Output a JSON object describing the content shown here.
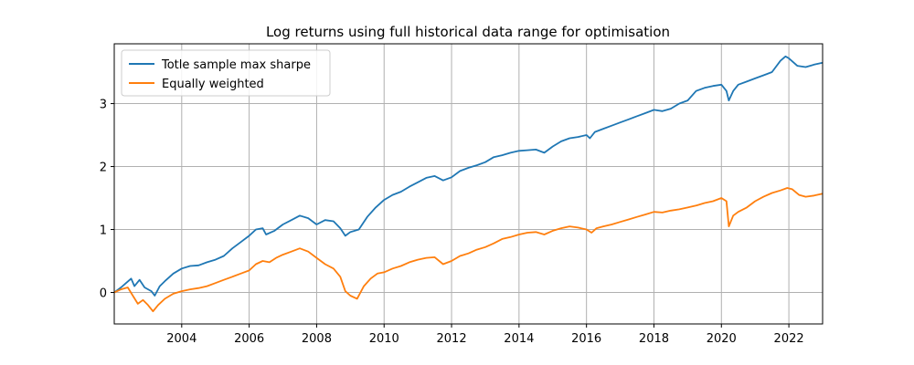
{
  "chart_data": {
    "type": "line",
    "title": "Log returns using full historical data range for optimisation",
    "xlabel": "",
    "ylabel": "",
    "xlim": [
      2002.0,
      2023.0
    ],
    "ylim": [
      -0.5,
      3.95
    ],
    "x_ticks": [
      2004,
      2006,
      2008,
      2010,
      2012,
      2014,
      2016,
      2018,
      2020,
      2022
    ],
    "y_ticks": [
      0,
      1,
      2,
      3
    ],
    "grid": true,
    "legend_position": "top-left",
    "series": [
      {
        "name": "Totle sample max sharpe",
        "color": "#1f77b4",
        "points": [
          [
            2002.0,
            0.0
          ],
          [
            2002.2,
            0.08
          ],
          [
            2002.35,
            0.15
          ],
          [
            2002.5,
            0.22
          ],
          [
            2002.6,
            0.1
          ],
          [
            2002.75,
            0.2
          ],
          [
            2002.9,
            0.08
          ],
          [
            2003.1,
            0.02
          ],
          [
            2003.2,
            -0.05
          ],
          [
            2003.35,
            0.1
          ],
          [
            2003.5,
            0.18
          ],
          [
            2003.75,
            0.3
          ],
          [
            2004.0,
            0.38
          ],
          [
            2004.25,
            0.42
          ],
          [
            2004.5,
            0.43
          ],
          [
            2004.75,
            0.48
          ],
          [
            2005.0,
            0.52
          ],
          [
            2005.25,
            0.58
          ],
          [
            2005.5,
            0.7
          ],
          [
            2005.75,
            0.8
          ],
          [
            2006.0,
            0.9
          ],
          [
            2006.2,
            1.0
          ],
          [
            2006.4,
            1.02
          ],
          [
            2006.5,
            0.92
          ],
          [
            2006.75,
            0.98
          ],
          [
            2007.0,
            1.08
          ],
          [
            2007.25,
            1.15
          ],
          [
            2007.5,
            1.22
          ],
          [
            2007.75,
            1.18
          ],
          [
            2008.0,
            1.08
          ],
          [
            2008.25,
            1.15
          ],
          [
            2008.5,
            1.13
          ],
          [
            2008.7,
            1.02
          ],
          [
            2008.85,
            0.9
          ],
          [
            2009.0,
            0.96
          ],
          [
            2009.25,
            1.0
          ],
          [
            2009.5,
            1.2
          ],
          [
            2009.75,
            1.35
          ],
          [
            2010.0,
            1.47
          ],
          [
            2010.25,
            1.55
          ],
          [
            2010.5,
            1.6
          ],
          [
            2010.75,
            1.68
          ],
          [
            2011.0,
            1.75
          ],
          [
            2011.25,
            1.82
          ],
          [
            2011.5,
            1.85
          ],
          [
            2011.75,
            1.78
          ],
          [
            2012.0,
            1.83
          ],
          [
            2012.25,
            1.93
          ],
          [
            2012.5,
            1.98
          ],
          [
            2012.75,
            2.02
          ],
          [
            2013.0,
            2.07
          ],
          [
            2013.25,
            2.15
          ],
          [
            2013.5,
            2.18
          ],
          [
            2013.75,
            2.22
          ],
          [
            2014.0,
            2.25
          ],
          [
            2014.25,
            2.26
          ],
          [
            2014.5,
            2.27
          ],
          [
            2014.75,
            2.22
          ],
          [
            2015.0,
            2.32
          ],
          [
            2015.25,
            2.4
          ],
          [
            2015.5,
            2.45
          ],
          [
            2015.75,
            2.47
          ],
          [
            2016.0,
            2.5
          ],
          [
            2016.1,
            2.45
          ],
          [
            2016.25,
            2.55
          ],
          [
            2016.5,
            2.6
          ],
          [
            2016.75,
            2.65
          ],
          [
            2017.0,
            2.7
          ],
          [
            2017.25,
            2.75
          ],
          [
            2017.5,
            2.8
          ],
          [
            2017.75,
            2.85
          ],
          [
            2018.0,
            2.9
          ],
          [
            2018.25,
            2.88
          ],
          [
            2018.5,
            2.92
          ],
          [
            2018.75,
            3.0
          ],
          [
            2019.0,
            3.05
          ],
          [
            2019.25,
            3.2
          ],
          [
            2019.5,
            3.25
          ],
          [
            2019.75,
            3.28
          ],
          [
            2020.0,
            3.3
          ],
          [
            2020.15,
            3.2
          ],
          [
            2020.22,
            3.05
          ],
          [
            2020.35,
            3.2
          ],
          [
            2020.5,
            3.3
          ],
          [
            2020.75,
            3.35
          ],
          [
            2021.0,
            3.4
          ],
          [
            2021.25,
            3.45
          ],
          [
            2021.5,
            3.5
          ],
          [
            2021.75,
            3.68
          ],
          [
            2021.9,
            3.75
          ],
          [
            2022.0,
            3.72
          ],
          [
            2022.25,
            3.6
          ],
          [
            2022.5,
            3.58
          ],
          [
            2022.75,
            3.62
          ],
          [
            2023.0,
            3.65
          ]
        ]
      },
      {
        "name": "Equally weighted",
        "color": "#ff7f0e",
        "points": [
          [
            2002.0,
            0.0
          ],
          [
            2002.2,
            0.05
          ],
          [
            2002.4,
            0.08
          ],
          [
            2002.55,
            -0.05
          ],
          [
            2002.7,
            -0.18
          ],
          [
            2002.85,
            -0.12
          ],
          [
            2003.0,
            -0.2
          ],
          [
            2003.15,
            -0.3
          ],
          [
            2003.3,
            -0.2
          ],
          [
            2003.5,
            -0.1
          ],
          [
            2003.75,
            -0.02
          ],
          [
            2004.0,
            0.02
          ],
          [
            2004.25,
            0.05
          ],
          [
            2004.5,
            0.07
          ],
          [
            2004.75,
            0.1
          ],
          [
            2005.0,
            0.15
          ],
          [
            2005.25,
            0.2
          ],
          [
            2005.5,
            0.25
          ],
          [
            2005.75,
            0.3
          ],
          [
            2006.0,
            0.35
          ],
          [
            2006.2,
            0.45
          ],
          [
            2006.4,
            0.5
          ],
          [
            2006.6,
            0.48
          ],
          [
            2006.8,
            0.55
          ],
          [
            2007.0,
            0.6
          ],
          [
            2007.25,
            0.65
          ],
          [
            2007.5,
            0.7
          ],
          [
            2007.75,
            0.65
          ],
          [
            2008.0,
            0.55
          ],
          [
            2008.25,
            0.45
          ],
          [
            2008.5,
            0.38
          ],
          [
            2008.7,
            0.25
          ],
          [
            2008.85,
            0.02
          ],
          [
            2009.0,
            -0.05
          ],
          [
            2009.2,
            -0.1
          ],
          [
            2009.4,
            0.1
          ],
          [
            2009.6,
            0.22
          ],
          [
            2009.8,
            0.3
          ],
          [
            2010.0,
            0.32
          ],
          [
            2010.25,
            0.38
          ],
          [
            2010.5,
            0.42
          ],
          [
            2010.75,
            0.48
          ],
          [
            2011.0,
            0.52
          ],
          [
            2011.25,
            0.55
          ],
          [
            2011.5,
            0.56
          ],
          [
            2011.75,
            0.45
          ],
          [
            2012.0,
            0.5
          ],
          [
            2012.25,
            0.58
          ],
          [
            2012.5,
            0.62
          ],
          [
            2012.75,
            0.68
          ],
          [
            2013.0,
            0.72
          ],
          [
            2013.25,
            0.78
          ],
          [
            2013.5,
            0.85
          ],
          [
            2013.75,
            0.88
          ],
          [
            2014.0,
            0.92
          ],
          [
            2014.25,
            0.95
          ],
          [
            2014.5,
            0.96
          ],
          [
            2014.75,
            0.92
          ],
          [
            2015.0,
            0.98
          ],
          [
            2015.25,
            1.02
          ],
          [
            2015.5,
            1.05
          ],
          [
            2015.75,
            1.03
          ],
          [
            2016.0,
            1.0
          ],
          [
            2016.15,
            0.95
          ],
          [
            2016.3,
            1.02
          ],
          [
            2016.5,
            1.05
          ],
          [
            2016.75,
            1.08
          ],
          [
            2017.0,
            1.12
          ],
          [
            2017.25,
            1.16
          ],
          [
            2017.5,
            1.2
          ],
          [
            2017.75,
            1.24
          ],
          [
            2018.0,
            1.28
          ],
          [
            2018.25,
            1.27
          ],
          [
            2018.5,
            1.3
          ],
          [
            2018.75,
            1.32
          ],
          [
            2019.0,
            1.35
          ],
          [
            2019.25,
            1.38
          ],
          [
            2019.5,
            1.42
          ],
          [
            2019.75,
            1.45
          ],
          [
            2020.0,
            1.5
          ],
          [
            2020.15,
            1.45
          ],
          [
            2020.22,
            1.05
          ],
          [
            2020.35,
            1.22
          ],
          [
            2020.5,
            1.28
          ],
          [
            2020.75,
            1.35
          ],
          [
            2021.0,
            1.45
          ],
          [
            2021.25,
            1.52
          ],
          [
            2021.5,
            1.58
          ],
          [
            2021.75,
            1.62
          ],
          [
            2021.95,
            1.66
          ],
          [
            2022.1,
            1.64
          ],
          [
            2022.3,
            1.55
          ],
          [
            2022.5,
            1.52
          ],
          [
            2022.75,
            1.54
          ],
          [
            2023.0,
            1.57
          ]
        ]
      }
    ]
  }
}
